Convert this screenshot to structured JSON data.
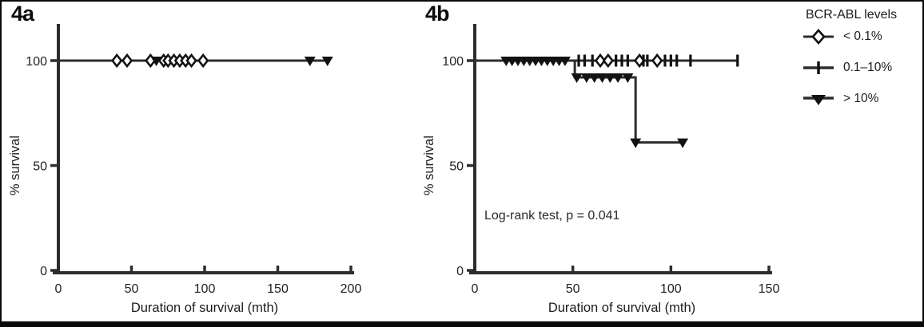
{
  "figure": {
    "background": "#ffffff",
    "border_color": "#0a0a0a",
    "colors": {
      "axis": "#2d2d2d",
      "curve": "#2d2d2d",
      "marker": "#121212",
      "text": "#222222"
    }
  },
  "legend": {
    "title": "BCR-ABL levels",
    "items": [
      {
        "label": "< 0.1%",
        "marker": "open-diamond"
      },
      {
        "label": "0.1–10%",
        "marker": "plus"
      },
      {
        "label": "> 10%",
        "marker": "filled-triangle-down"
      }
    ]
  },
  "chart_data": [
    {
      "type": "line",
      "panel_label": "4a",
      "xlabel": "Duration of survival (mth)",
      "ylabel": "% survival",
      "xlim": [
        0,
        200
      ],
      "ylim": [
        0,
        100
      ],
      "xticks": [
        0,
        50,
        100,
        150,
        200
      ],
      "yticks": [
        0,
        50,
        100
      ],
      "annotation": "",
      "series": [
        {
          "name": "< 0.1%",
          "marker": "open-diamond",
          "line": [
            [
              0,
              100
            ],
            [
              99,
              100
            ]
          ],
          "markers": [
            [
              40,
              100
            ],
            [
              47,
              100
            ],
            [
              63,
              100
            ],
            [
              72,
              100
            ],
            [
              75,
              100
            ],
            [
              79,
              100
            ],
            [
              83,
              100
            ],
            [
              87,
              100
            ],
            [
              91,
              100
            ],
            [
              99,
              100
            ]
          ]
        },
        {
          "name": "0.1–10%",
          "marker": "plus",
          "line": [
            [
              0,
              100
            ],
            [
              100,
              100
            ]
          ],
          "markers": []
        },
        {
          "name": "> 10%",
          "marker": "filled-triangle-down",
          "line": [
            [
              0,
              100
            ],
            [
              184,
              100
            ]
          ],
          "markers": [
            [
              67,
              100
            ],
            [
              172,
              100
            ],
            [
              184,
              100
            ]
          ]
        }
      ]
    },
    {
      "type": "line",
      "panel_label": "4b",
      "xlabel": "Duration of survival (mth)",
      "ylabel": "% survival",
      "xlim": [
        0,
        150
      ],
      "ylim": [
        0,
        100
      ],
      "xticks": [
        0,
        50,
        100,
        150
      ],
      "yticks": [
        0,
        50,
        100
      ],
      "annotation": "Log-rank test, p = 0.041",
      "series": [
        {
          "name": "< 0.1%",
          "marker": "open-diamond",
          "line": [
            [
              0,
              100
            ],
            [
              100,
              100
            ]
          ],
          "markers": [
            [
              64,
              100
            ],
            [
              68,
              100
            ],
            [
              84,
              100
            ],
            [
              93,
              100
            ]
          ]
        },
        {
          "name": "0.1–10%",
          "marker": "plus",
          "line": [
            [
              0,
              100
            ],
            [
              134,
              100
            ]
          ],
          "markers": [
            [
              53,
              100
            ],
            [
              56,
              100
            ],
            [
              60,
              100
            ],
            [
              72,
              100
            ],
            [
              75,
              100
            ],
            [
              78,
              100
            ],
            [
              86,
              100
            ],
            [
              88,
              100
            ],
            [
              97,
              100
            ],
            [
              100,
              100
            ],
            [
              103,
              100
            ],
            [
              110,
              100
            ],
            [
              134,
              100
            ]
          ]
        },
        {
          "name": "> 10%",
          "marker": "filled-triangle-down",
          "line": [
            [
              0,
              100
            ],
            [
              51,
              100
            ],
            [
              51,
              92
            ],
            [
              82,
              92
            ],
            [
              82,
              61
            ],
            [
              107,
              61
            ]
          ],
          "markers": [
            [
              16,
              100
            ],
            [
              19,
              100
            ],
            [
              22,
              100
            ],
            [
              25,
              100
            ],
            [
              28,
              100
            ],
            [
              31,
              100
            ],
            [
              34,
              100
            ],
            [
              37,
              100
            ],
            [
              40,
              100
            ],
            [
              43,
              100
            ],
            [
              46,
              100
            ],
            [
              52,
              92
            ],
            [
              57,
              92
            ],
            [
              61,
              92
            ],
            [
              65,
              92
            ],
            [
              69,
              92
            ],
            [
              73,
              92
            ],
            [
              78,
              92
            ],
            [
              82,
              61
            ],
            [
              106,
              61
            ]
          ]
        }
      ]
    }
  ]
}
